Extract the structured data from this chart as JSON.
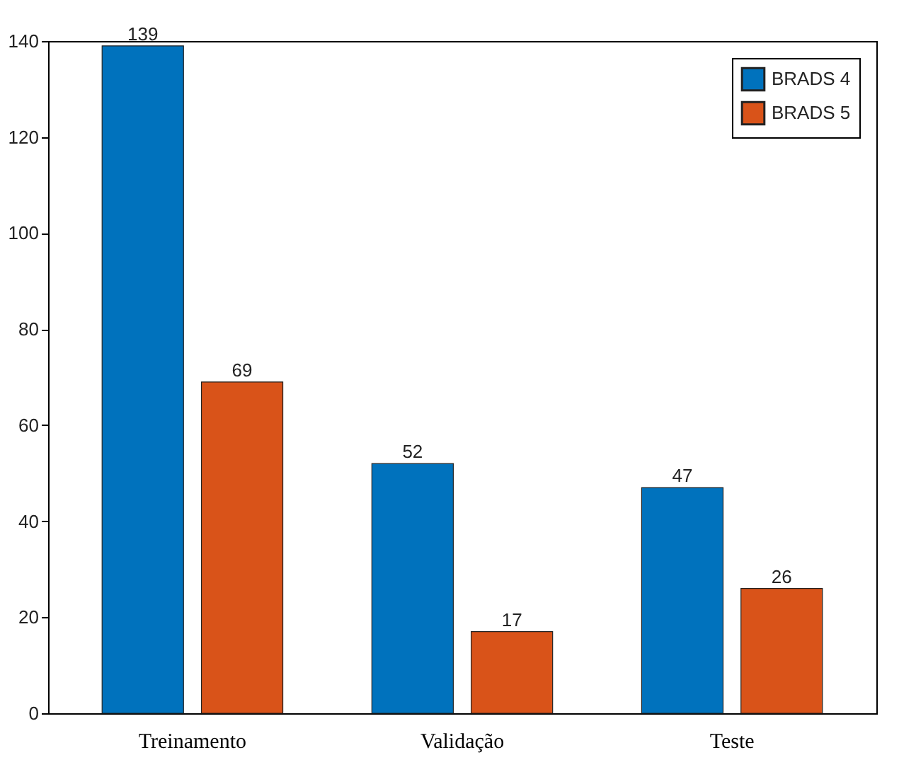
{
  "chart_data": {
    "type": "bar",
    "categories": [
      "Treinamento",
      "Validação",
      "Teste"
    ],
    "series": [
      {
        "name": "BRADS 4",
        "color": "#0072bd",
        "values": [
          139,
          52,
          47
        ]
      },
      {
        "name": "BRADS 5",
        "color": "#d95319",
        "values": [
          69,
          17,
          26
        ]
      }
    ],
    "ylim": [
      0,
      140
    ],
    "yticks": [
      0,
      20,
      40,
      60,
      80,
      100,
      120,
      140
    ],
    "grid": false,
    "legend": "top right",
    "data_labels": true
  }
}
